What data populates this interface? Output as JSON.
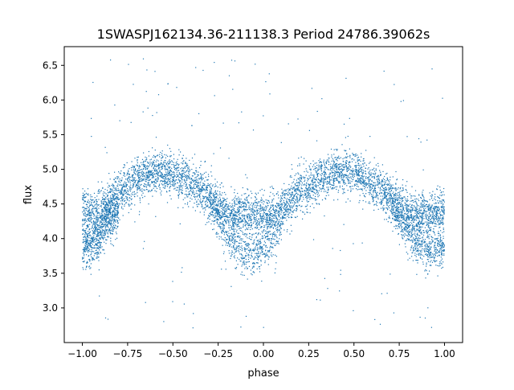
{
  "chart_data": {
    "type": "scatter",
    "title": "1SWASPJ162134.36-211138.3 Period 24786.39062s",
    "xlabel": "phase",
    "ylabel": "flux",
    "xlim": [
      -1.1,
      1.1
    ],
    "ylim": [
      2.5,
      6.77
    ],
    "xticks": [
      -1.0,
      -0.75,
      -0.5,
      -0.25,
      0.0,
      0.25,
      0.5,
      0.75,
      1.0
    ],
    "xtick_labels": [
      "−1.00",
      "−0.75",
      "−0.50",
      "−0.25",
      "0.00",
      "0.25",
      "0.50",
      "0.75",
      "1.00"
    ],
    "yticks": [
      3.0,
      3.5,
      4.0,
      4.5,
      5.0,
      5.5,
      6.0,
      6.5
    ],
    "ytick_labels": [
      "3.0",
      "3.5",
      "4.0",
      "4.5",
      "5.0",
      "5.5",
      "6.0",
      "6.5"
    ],
    "grid": false,
    "marker_color": "#1f77b4",
    "series": [
      {
        "x": [
          -1.0,
          -0.9,
          -0.8,
          -0.7,
          -0.6,
          -0.5,
          -0.4,
          -0.3,
          -0.2,
          -0.1,
          0.0,
          0.1,
          0.2,
          0.3,
          0.4,
          0.5,
          0.6,
          0.7,
          0.8,
          0.9,
          1.0
        ],
        "y": [
          4.4,
          4.4,
          4.65,
          4.85,
          4.95,
          4.95,
          4.8,
          4.6,
          4.35,
          4.35,
          4.35,
          4.4,
          4.65,
          4.85,
          4.95,
          4.95,
          4.8,
          4.6,
          4.35,
          4.35,
          4.4
        ],
        "secondary_branch": {
          "x": [
            -1.0,
            -0.95,
            -0.9,
            -0.85,
            -0.8,
            -0.3,
            -0.25,
            -0.2,
            -0.15,
            -0.1,
            -0.05,
            0.0,
            0.05,
            0.1,
            0.7,
            0.75,
            0.8,
            0.85,
            0.9,
            0.95,
            1.0
          ],
          "y": [
            3.9,
            3.9,
            4.05,
            4.25,
            4.4,
            4.5,
            4.3,
            4.05,
            3.9,
            3.8,
            3.8,
            3.85,
            4.0,
            4.2,
            4.5,
            4.3,
            4.1,
            3.95,
            3.85,
            3.85,
            3.9
          ]
        },
        "scatter_sd": 0.15,
        "outlier_range": [
          2.7,
          6.6
        ]
      }
    ]
  }
}
